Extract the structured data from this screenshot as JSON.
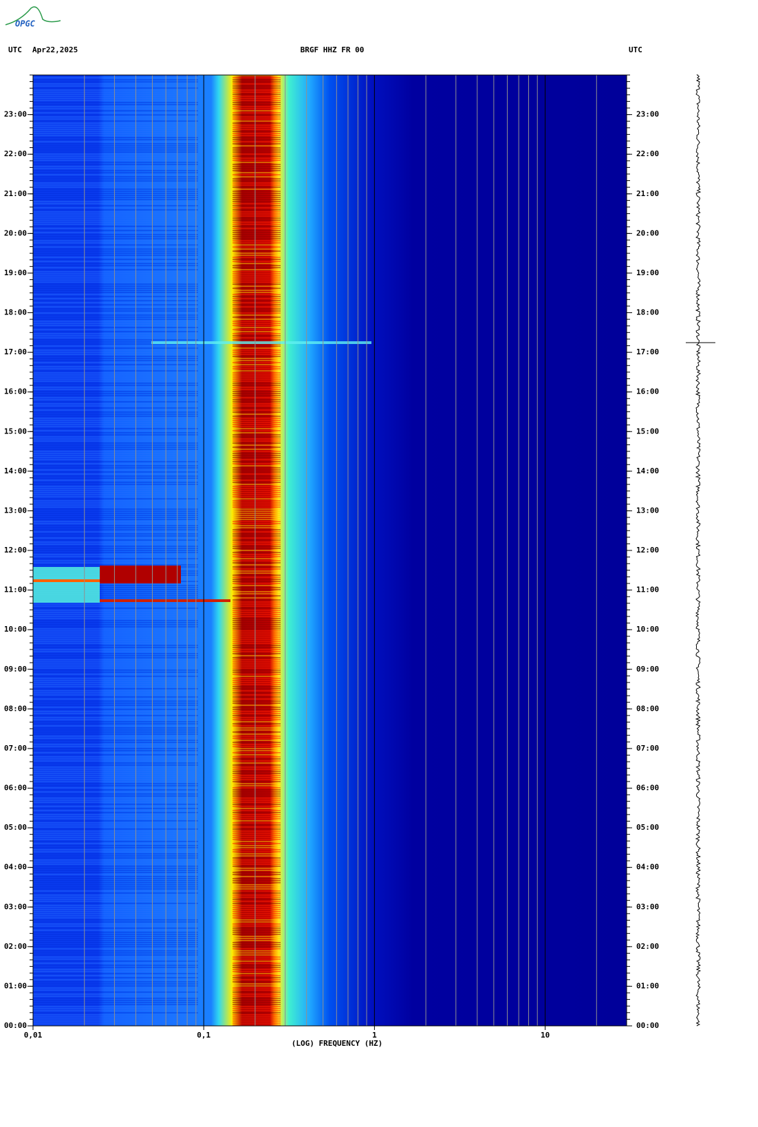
{
  "logo": "OPGC",
  "chart_data": {
    "type": "spectrogram",
    "header_left": "UTC",
    "date": "Apr22,2025",
    "title": "BRGF HHZ FR 00",
    "header_right": "UTC",
    "xlabel": "(LOG) FREQUENCY (HZ)",
    "xscale": "log",
    "xlim": [
      0.01,
      30
    ],
    "xticks": [
      {
        "value": 0.01,
        "label": "0,01"
      },
      {
        "value": 0.1,
        "label": "0,1"
      },
      1,
      10
    ],
    "ylim": [
      0,
      24
    ],
    "yticks": [
      {
        "value": 0,
        "label": "00:00"
      },
      {
        "value": 1,
        "label": "01:00"
      },
      {
        "value": 2,
        "label": "02:00"
      },
      {
        "value": 3,
        "label": "03:00"
      },
      {
        "value": 4,
        "label": "04:00"
      },
      {
        "value": 5,
        "label": "05:00"
      },
      {
        "value": 6,
        "label": "06:00"
      },
      {
        "value": 7,
        "label": "07:00"
      },
      {
        "value": 8,
        "label": "08:00"
      },
      {
        "value": 9,
        "label": "09:00"
      },
      {
        "value": 10,
        "label": "10:00"
      },
      {
        "value": 11,
        "label": "11:00"
      },
      {
        "value": 12,
        "label": "12:00"
      },
      {
        "value": 13,
        "label": "13:00"
      },
      {
        "value": 14,
        "label": "14:00"
      },
      {
        "value": 15,
        "label": "15:00"
      },
      {
        "value": 16,
        "label": "16:00"
      },
      {
        "value": 17,
        "label": "17:00"
      },
      {
        "value": 18,
        "label": "18:00"
      },
      {
        "value": 19,
        "label": "19:00"
      },
      {
        "value": 20,
        "label": "20:00"
      },
      {
        "value": 21,
        "label": "21:00"
      },
      {
        "value": 22,
        "label": "22:00"
      },
      {
        "value": 23,
        "label": "23:00"
      }
    ],
    "grid": true
  }
}
